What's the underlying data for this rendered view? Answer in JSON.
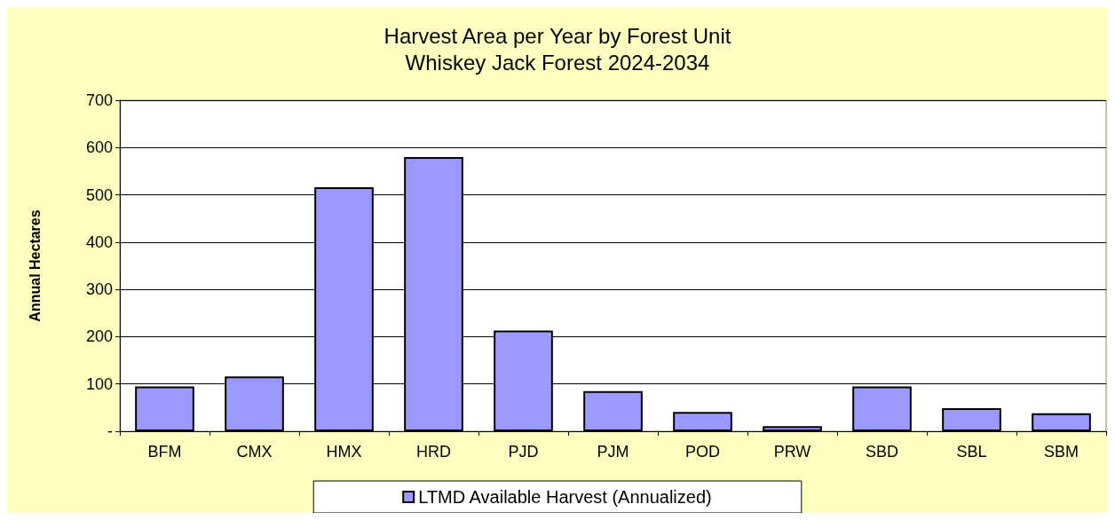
{
  "chart_data": {
    "type": "bar",
    "title": "Harvest Area per Year by Forest Unit\nWhiskey Jack Forest 2024-2034",
    "ylabel": "Annual Hectares",
    "categories": [
      "BFM",
      "CMX",
      "HMX",
      "HRD",
      "PJD",
      "PJM",
      "POD",
      "PRW",
      "SBD",
      "SBL",
      "SBM"
    ],
    "series": [
      {
        "name": "LTMD Available Harvest (Annualized)",
        "color": "#9999ff",
        "values": [
          95,
          116,
          516,
          580,
          213,
          85,
          41,
          11,
          95,
          49,
          38
        ]
      }
    ],
    "ylim": [
      0,
      700
    ],
    "yticks": [
      {
        "value": 0,
        "label": "-"
      },
      100,
      200,
      300,
      400,
      500,
      600,
      700
    ],
    "grid": "y",
    "legend": "bottom"
  }
}
